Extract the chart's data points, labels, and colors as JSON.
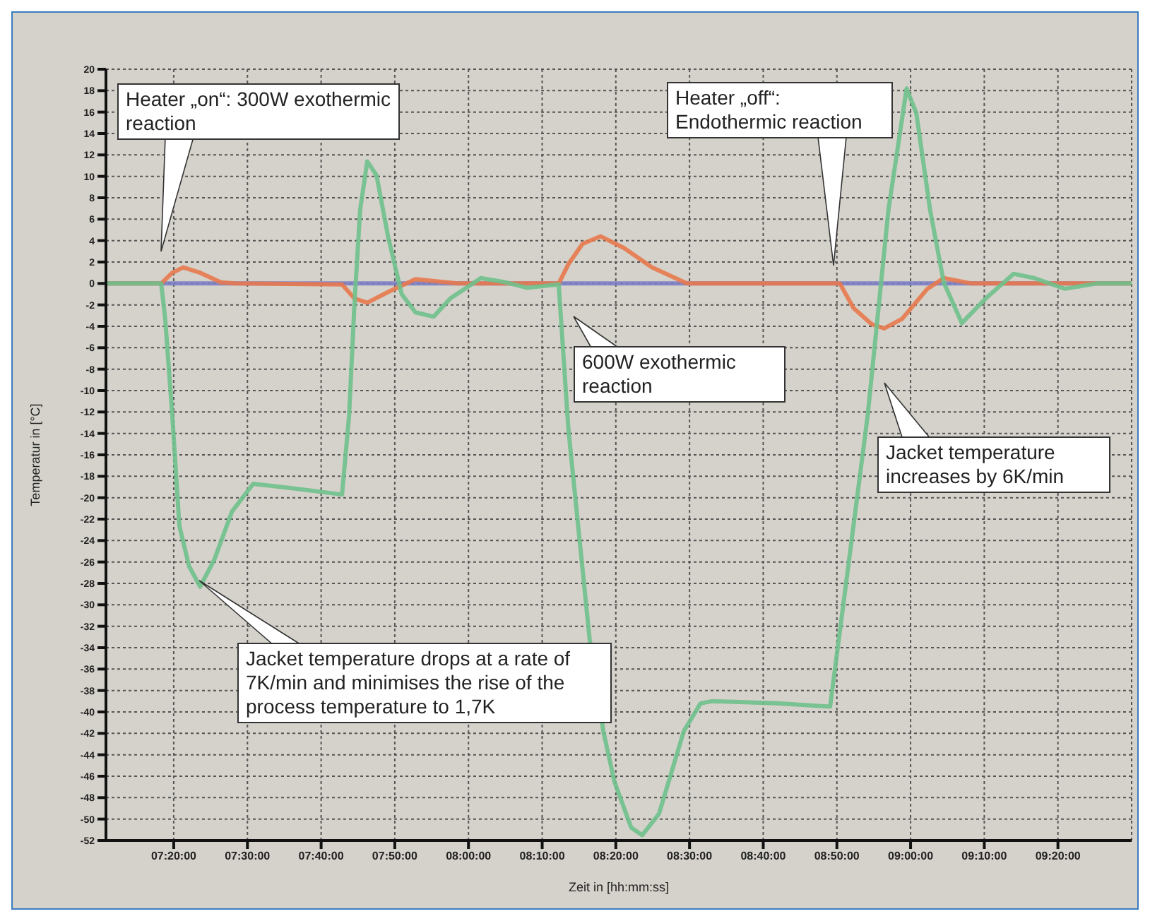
{
  "chart_data": {
    "type": "line",
    "ylabel": "Temperatur in [°C]",
    "xlabel": "Zeit in [hh:mm:ss]",
    "xlim": [
      7.18,
      9.5
    ],
    "xticks": [
      {
        "value": 7.3333,
        "label": "07:20:00"
      },
      {
        "value": 7.5,
        "label": "07:30:00"
      },
      {
        "value": 7.6667,
        "label": "07:40:00"
      },
      {
        "value": 7.8333,
        "label": "07:50:00"
      },
      {
        "value": 8,
        "label": "08:00:00"
      },
      {
        "value": 8.1667,
        "label": "08:10:00"
      },
      {
        "value": 8.3333,
        "label": "08:20:00"
      },
      {
        "value": 8.5,
        "label": "08:30:00"
      },
      {
        "value": 8.6667,
        "label": "08:40:00"
      },
      {
        "value": 8.8333,
        "label": "08:50:00"
      },
      {
        "value": 9,
        "label": "09:00:00"
      },
      {
        "value": 9.1667,
        "label": "09:10:00"
      },
      {
        "value": 9.3333,
        "label": "09:20:00"
      }
    ],
    "ylim": [
      -52,
      20
    ],
    "yticks": [
      -52,
      -50,
      -48,
      -46,
      -44,
      -42,
      -40,
      -38,
      -36,
      -34,
      -32,
      -30,
      -28,
      -26,
      -24,
      -22,
      -20,
      -18,
      -16,
      -14,
      -12,
      -10,
      -8,
      -6,
      -4,
      -2,
      0,
      2,
      4,
      6,
      8,
      10,
      12,
      14,
      16,
      18,
      20
    ],
    "grid": true,
    "marker": "none",
    "line_style": "solid",
    "series": [
      {
        "color": "#7c7fc4",
        "x": [
          7.18,
          9.5
        ],
        "values": [
          0,
          0
        ]
      },
      {
        "color": "#e8794c",
        "x": [
          7.18,
          7.305,
          7.33,
          7.355,
          7.393,
          7.44,
          7.472,
          7.714,
          7.742,
          7.771,
          7.818,
          7.88,
          7.975,
          8.204,
          8.226,
          8.258,
          8.299,
          8.352,
          8.415,
          8.494,
          8.84,
          8.871,
          8.912,
          8.94,
          8.981,
          9.038,
          9.075,
          9.138,
          9.5
        ],
        "values": [
          0,
          0,
          1,
          1.5,
          1,
          0.1,
          0,
          -0.1,
          -1.4,
          -1.8,
          -0.8,
          0.4,
          0,
          0,
          1.8,
          3.7,
          4.4,
          3.3,
          1.5,
          0,
          0,
          -2.3,
          -3.8,
          -4.2,
          -3.3,
          -0.5,
          0.5,
          0,
          0
        ]
      },
      {
        "color": "#6fc08c",
        "x": [
          7.18,
          7.305,
          7.314,
          7.33,
          7.346,
          7.368,
          7.393,
          7.425,
          7.465,
          7.513,
          7.598,
          7.714,
          7.73,
          7.742,
          7.755,
          7.771,
          7.792,
          7.818,
          7.849,
          7.88,
          7.921,
          7.959,
          8.028,
          8.085,
          8.132,
          8.204,
          8.226,
          8.248,
          8.274,
          8.305,
          8.33,
          8.368,
          8.393,
          8.431,
          8.487,
          8.525,
          8.55,
          8.698,
          8.818,
          8.855,
          8.903,
          8.95,
          8.991,
          9.013,
          9.044,
          9.075,
          9.116,
          9.17,
          9.233,
          9.28,
          9.349,
          9.421,
          9.5
        ],
        "values": [
          0,
          0,
          -3.3,
          -12.3,
          -22.6,
          -26.4,
          -28.3,
          -25.8,
          -21.3,
          -18.7,
          -19.1,
          -19.7,
          -12.3,
          -2,
          6.9,
          11.4,
          10.1,
          4.4,
          -1,
          -2.7,
          -3.1,
          -1.4,
          0.5,
          0.1,
          -0.4,
          -0.1,
          -13.6,
          -22.6,
          -33.2,
          -41.8,
          -46.5,
          -50.8,
          -51.5,
          -49.5,
          -41.8,
          -39.2,
          -39,
          -39.2,
          -39.5,
          -27.7,
          -12.3,
          6.9,
          18.2,
          15.9,
          6.9,
          0.1,
          -3.7,
          -1.4,
          0.9,
          0.5,
          -0.5,
          0,
          0
        ]
      }
    ],
    "annotations": [
      "Heater „on“: 300W exothermic reaction",
      "Heater „off“: Endothermic reaction",
      "600W exothermic reaction",
      "Jacket temperature increases by 6K/min",
      "Jacket temperature drops at a rate of 7K/min and minimises the rise of the process temperature to 1,7K"
    ]
  }
}
